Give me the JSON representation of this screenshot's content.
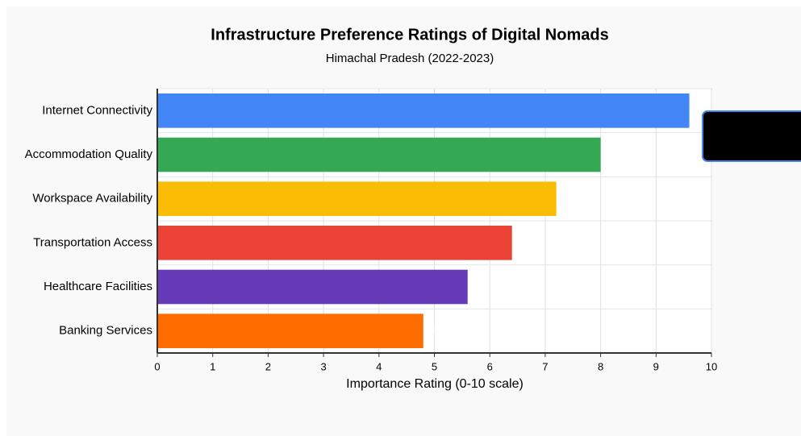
{
  "chart_data": {
    "type": "bar",
    "orientation": "horizontal",
    "title": "Infrastructure Preference Ratings of Digital Nomads",
    "subtitle": "Himachal Pradesh (2022-2023)",
    "x_label": "Importance Rating (0-10 scale)",
    "categories": [
      "Internet Connectivity",
      "Accommodation Quality",
      "Workspace Availability",
      "Transportation Access",
      "Healthcare Facilities",
      "Banking Services"
    ],
    "values": [
      9.6,
      8.0,
      7.2,
      6.4,
      5.6,
      4.8
    ],
    "value_labels": [
      "9.6",
      "8.0",
      "7.2",
      "6.4",
      "5.6",
      "4.8"
    ],
    "colors": [
      "#4285f4",
      "#34a853",
      "#fbbc05",
      "#ea4335",
      "#673ab7",
      "#ff6d00"
    ],
    "xlim": [
      0,
      10
    ],
    "xticks": [
      0,
      1,
      2,
      3,
      4,
      5,
      6,
      7,
      8,
      9,
      10
    ],
    "grid": true
  }
}
